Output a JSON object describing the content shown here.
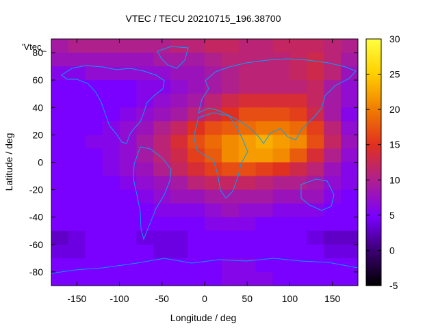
{
  "chart_data": {
    "type": "heatmap",
    "title": "VTEC / TECU 20210715_196.38700",
    "xlabel": "Longitude / deg",
    "ylabel": "Latitude / deg",
    "annotation": "'Vtec_",
    "xlim": [
      -180,
      180
    ],
    "ylim": [
      -90,
      90
    ],
    "xticks": [
      -150,
      -100,
      -50,
      0,
      50,
      100,
      150
    ],
    "yticks": [
      -80,
      -60,
      -40,
      -20,
      0,
      20,
      40,
      60,
      80
    ],
    "colorbar": {
      "range": [
        -5,
        30
      ],
      "ticks": [
        -5,
        0,
        5,
        10,
        15,
        20,
        25,
        30
      ],
      "palette": [
        "#000000",
        "#3a0070",
        "#7a00ff",
        "#b0208c",
        "#e03020",
        "#f07a00",
        "#ffd000",
        "#ffff40"
      ]
    },
    "lon_centers": [
      -170,
      -150,
      -130,
      -110,
      -90,
      -70,
      -50,
      -30,
      -10,
      10,
      30,
      50,
      70,
      90,
      110,
      130,
      150,
      170
    ],
    "lat_centers": [
      85,
      75,
      65,
      55,
      45,
      35,
      25,
      15,
      5,
      -5,
      -15,
      -25,
      -35,
      -45,
      -55,
      -65,
      -75,
      -85
    ],
    "values": [
      [
        9,
        10,
        10,
        10,
        10,
        10,
        10,
        11,
        11,
        12,
        12,
        11,
        11,
        12,
        12,
        12,
        11,
        10
      ],
      [
        8,
        8,
        8,
        8,
        8,
        8,
        9,
        9,
        9,
        10,
        11,
        11,
        11,
        11,
        12,
        13,
        11,
        9
      ],
      [
        6,
        6,
        7,
        7,
        7,
        7,
        7,
        8,
        8,
        9,
        10,
        11,
        11,
        11,
        12,
        13,
        11,
        8
      ],
      [
        5,
        5,
        5,
        5,
        5,
        6,
        6,
        7,
        8,
        9,
        10,
        11,
        11,
        11,
        11,
        12,
        9,
        7
      ],
      [
        5,
        5,
        5,
        5,
        5,
        6,
        7,
        8,
        9,
        11,
        13,
        14,
        14,
        14,
        14,
        12,
        9,
        7
      ],
      [
        5,
        5,
        5,
        5,
        6,
        7,
        8,
        9,
        11,
        13,
        15,
        17,
        17,
        17,
        16,
        13,
        9,
        6
      ],
      [
        5,
        5,
        5,
        6,
        7,
        8,
        10,
        12,
        15,
        17,
        18,
        19,
        20,
        20,
        19,
        16,
        11,
        7
      ],
      [
        5,
        5,
        6,
        6,
        7,
        9,
        11,
        14,
        17,
        19,
        21,
        22,
        23,
        22,
        21,
        17,
        12,
        8
      ],
      [
        5,
        5,
        5,
        6,
        7,
        9,
        11,
        13,
        16,
        18,
        21,
        22,
        22,
        21,
        18,
        14,
        10,
        7
      ],
      [
        5,
        5,
        5,
        6,
        7,
        8,
        10,
        12,
        14,
        16,
        17,
        17,
        16,
        15,
        13,
        11,
        8,
        6
      ],
      [
        5,
        5,
        5,
        5,
        6,
        7,
        8,
        9,
        11,
        12,
        12,
        12,
        11,
        10,
        10,
        9,
        7,
        6
      ],
      [
        5,
        5,
        5,
        5,
        5,
        6,
        7,
        8,
        8,
        9,
        9,
        9,
        9,
        8,
        8,
        8,
        6,
        5
      ],
      [
        5,
        5,
        5,
        5,
        5,
        5,
        6,
        6,
        6,
        7,
        8,
        7,
        7,
        6,
        6,
        6,
        5,
        5
      ],
      [
        5,
        5,
        5,
        5,
        5,
        5,
        5,
        5,
        5,
        6,
        6,
        6,
        5,
        5,
        5,
        5,
        5,
        5
      ],
      [
        3,
        4,
        5,
        5,
        5,
        4,
        4,
        4,
        5,
        5,
        5,
        5,
        5,
        5,
        5,
        4,
        3,
        3
      ],
      [
        4,
        4,
        5,
        5,
        5,
        5,
        4,
        4,
        5,
        5,
        5,
        5,
        5,
        5,
        5,
        5,
        4,
        4
      ],
      [
        5,
        5,
        5,
        5,
        5,
        5,
        5,
        5,
        5,
        5,
        6,
        6,
        5,
        5,
        5,
        5,
        5,
        5
      ],
      [
        5,
        5,
        5,
        5,
        5,
        5,
        5,
        5,
        5,
        5,
        6,
        6,
        6,
        5,
        5,
        5,
        5,
        5
      ]
    ],
    "coastline_color": "#00a0ff",
    "grid": false
  }
}
